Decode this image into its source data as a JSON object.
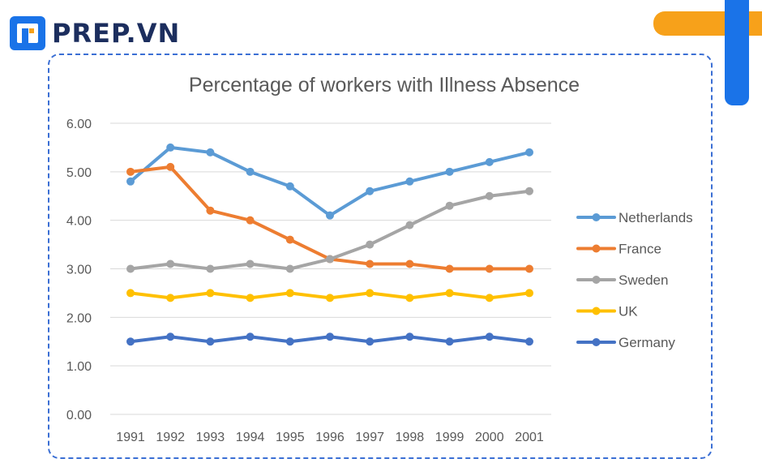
{
  "brand": {
    "name": "PREP.VN"
  },
  "colors": {
    "accent_orange": "#f7a11a",
    "accent_blue": "#1a73e8",
    "frame": "#3b6fd4"
  },
  "chart_data": {
    "type": "line",
    "title": "Percentage of workers with Illness Absence",
    "xlabel": "",
    "ylabel": "",
    "categories": [
      "1991",
      "1992",
      "1993",
      "1994",
      "1995",
      "1996",
      "1997",
      "1998",
      "1999",
      "2000",
      "2001"
    ],
    "y_ticks": [
      "0.00",
      "1.00",
      "2.00",
      "3.00",
      "4.00",
      "5.00",
      "6.00"
    ],
    "ylim": [
      0,
      6
    ],
    "grid": true,
    "legend_position": "right",
    "series": [
      {
        "name": "Netherlands",
        "color": "#5b9bd5",
        "values": [
          4.8,
          5.5,
          5.4,
          5.0,
          4.7,
          4.1,
          4.6,
          4.8,
          5.0,
          5.2,
          5.4
        ]
      },
      {
        "name": "France",
        "color": "#ed7d31",
        "values": [
          5.0,
          5.1,
          4.2,
          4.0,
          3.6,
          3.2,
          3.1,
          3.1,
          3.0,
          3.0,
          3.0
        ]
      },
      {
        "name": "Sweden",
        "color": "#a5a5a5",
        "values": [
          3.0,
          3.1,
          3.0,
          3.1,
          3.0,
          3.2,
          3.5,
          3.9,
          4.3,
          4.5,
          4.6
        ]
      },
      {
        "name": "UK",
        "color": "#ffc000",
        "values": [
          2.5,
          2.4,
          2.5,
          2.4,
          2.5,
          2.4,
          2.5,
          2.4,
          2.5,
          2.4,
          2.5
        ]
      },
      {
        "name": "Germany",
        "color": "#4472c4",
        "values": [
          1.5,
          1.6,
          1.5,
          1.6,
          1.5,
          1.6,
          1.5,
          1.6,
          1.5,
          1.6,
          1.5
        ]
      }
    ]
  }
}
